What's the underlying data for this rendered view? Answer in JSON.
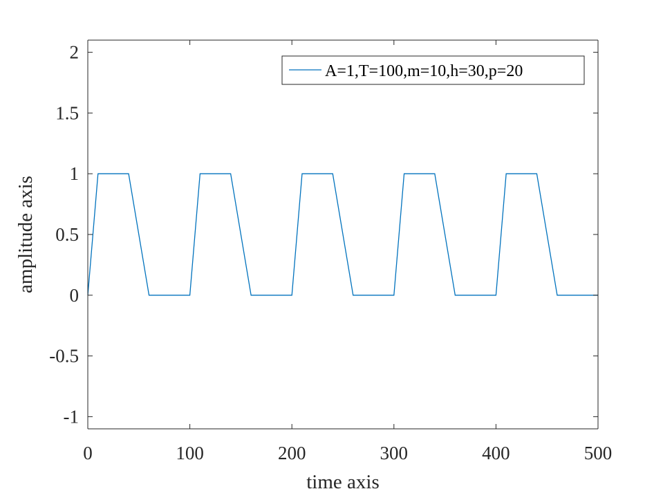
{
  "chart_data": {
    "type": "line",
    "xlabel": "time axis",
    "ylabel": "amplitude axis",
    "xlim": [
      0,
      500
    ],
    "ylim": [
      -1.1,
      2.1
    ],
    "xticks": [
      0,
      100,
      200,
      300,
      400,
      500
    ],
    "xtick_labels": [
      "0",
      "100",
      "200",
      "300",
      "400",
      "500"
    ],
    "yticks": [
      -1,
      -0.5,
      0,
      0.5,
      1,
      1.5,
      2
    ],
    "ytick_labels": [
      "-1",
      "-0.5",
      "0",
      "0.5",
      "1",
      "1.5",
      "2"
    ],
    "grid": false,
    "legend_position": "top-right",
    "series": [
      {
        "name": "A=1,T=100,m=10,h=30,p=20",
        "color": "#0072BD",
        "x": [
          0,
          10,
          40,
          60,
          100,
          110,
          140,
          160,
          200,
          210,
          240,
          260,
          300,
          310,
          340,
          360,
          400,
          410,
          440,
          460,
          500
        ],
        "y": [
          0,
          1,
          1,
          0,
          0,
          1,
          1,
          0,
          0,
          1,
          1,
          0,
          0,
          1,
          1,
          0,
          0,
          1,
          1,
          0,
          0
        ]
      }
    ]
  }
}
